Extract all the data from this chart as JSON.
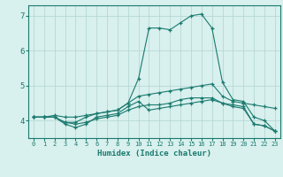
{
  "xlabel": "Humidex (Indice chaleur)",
  "ylabel": "",
  "x": [
    0,
    1,
    2,
    3,
    4,
    5,
    6,
    7,
    8,
    9,
    10,
    11,
    12,
    13,
    14,
    15,
    16,
    17,
    18,
    19,
    20,
    21,
    22,
    23
  ],
  "line1": [
    4.1,
    4.1,
    4.1,
    3.9,
    3.8,
    3.9,
    4.1,
    4.15,
    4.2,
    4.4,
    4.55,
    4.3,
    4.35,
    4.4,
    4.45,
    4.5,
    4.55,
    4.6,
    4.5,
    4.45,
    4.4,
    3.9,
    3.85,
    3.7
  ],
  "line2": [
    4.1,
    4.1,
    4.1,
    3.95,
    3.95,
    4.1,
    4.2,
    4.25,
    4.3,
    4.5,
    5.2,
    6.65,
    6.65,
    6.6,
    6.8,
    7.0,
    7.05,
    6.65,
    5.1,
    4.6,
    4.55,
    4.1,
    4.0,
    3.7
  ],
  "line3": [
    4.1,
    4.1,
    4.15,
    4.1,
    4.1,
    4.15,
    4.2,
    4.25,
    4.3,
    4.5,
    4.7,
    4.75,
    4.8,
    4.85,
    4.9,
    4.95,
    5.0,
    5.05,
    4.7,
    4.55,
    4.5,
    4.45,
    4.4,
    4.35
  ],
  "line4": [
    4.1,
    4.1,
    4.1,
    3.95,
    3.9,
    3.95,
    4.05,
    4.1,
    4.15,
    4.3,
    4.4,
    4.45,
    4.45,
    4.5,
    4.6,
    4.65,
    4.65,
    4.65,
    4.5,
    4.4,
    4.35,
    3.9,
    3.85,
    3.7
  ],
  "line_color": "#1a7a6e",
  "bg_color": "#d8f0ee",
  "grid_color": "#b0d4d0",
  "ylim": [
    3.5,
    7.3
  ],
  "xlim": [
    -0.5,
    23.5
  ],
  "yticks": [
    4,
    5,
    6,
    7
  ],
  "xticks": [
    0,
    1,
    2,
    3,
    4,
    5,
    6,
    7,
    8,
    9,
    10,
    11,
    12,
    13,
    14,
    15,
    16,
    17,
    18,
    19,
    20,
    21,
    22,
    23
  ],
  "xlabel_fontsize": 6.5,
  "xtick_fontsize": 5.0,
  "ytick_fontsize": 6.5
}
